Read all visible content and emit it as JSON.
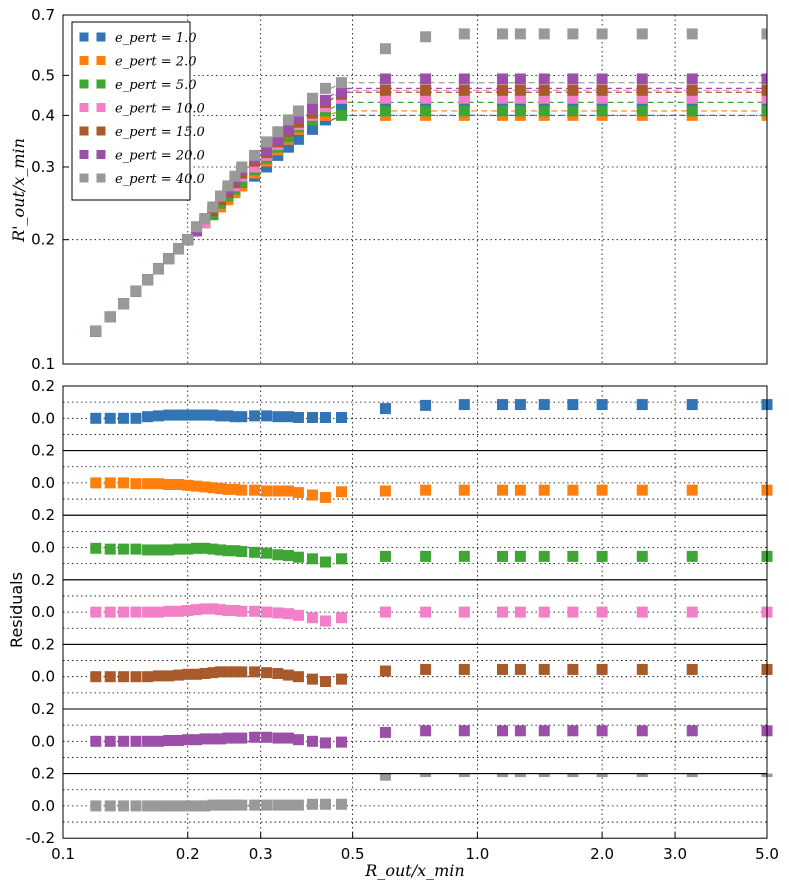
{
  "chart_data": {
    "type": "scatter",
    "xlabel": "R_out/x_min",
    "ylabel": "R'_out/x_min",
    "residuals_label": "Residuals",
    "x_scale": "log",
    "xlim": [
      0.1,
      5.0
    ],
    "x_ticks": [
      {
        "value": 0.1,
        "label": "0.1"
      },
      {
        "value": 0.2,
        "label": "0.2"
      },
      {
        "value": 0.3,
        "label": "0.3"
      },
      {
        "value": 0.5,
        "label": "0.5"
      },
      {
        "value": 1.0,
        "label": "1.0"
      },
      {
        "value": 2.0,
        "label": "2.0"
      },
      {
        "value": 3.0,
        "label": "3.0"
      },
      {
        "value": 5.0,
        "label": "5.0"
      }
    ],
    "main": {
      "y_scale": "log",
      "ylim": [
        0.1,
        0.7
      ],
      "y_ticks": [
        {
          "value": 0.1,
          "label": "0.1"
        },
        {
          "value": 0.2,
          "label": "0.2"
        },
        {
          "value": 0.3,
          "label": "0.3"
        },
        {
          "value": 0.4,
          "label": "0.4"
        },
        {
          "value": 0.5,
          "label": "0.5"
        },
        {
          "value": 0.7,
          "label": "0.7"
        }
      ]
    },
    "residuals": {
      "ylim": [
        -0.2,
        0.2
      ],
      "y_ticks": [
        {
          "value": 0.2,
          "label": "0.2"
        },
        {
          "value": 0.0,
          "label": "0.0"
        },
        {
          "value": -0.2,
          "label": "-0.2"
        }
      ],
      "grid_values": [
        0.1,
        0.0,
        -0.1
      ]
    },
    "x_points": [
      0.12,
      0.13,
      0.14,
      0.15,
      0.16,
      0.17,
      0.18,
      0.19,
      0.2,
      0.21,
      0.22,
      0.23,
      0.24,
      0.25,
      0.26,
      0.27,
      0.29,
      0.31,
      0.33,
      0.35,
      0.37,
      0.4,
      0.43,
      0.47,
      0.6,
      0.75,
      0.93,
      1.15,
      1.27,
      1.45,
      1.7,
      2.0,
      2.5,
      3.3,
      5.0
    ],
    "legend": {
      "position": "upper-left",
      "title_prefix": "e_pert = "
    },
    "series": [
      {
        "name": "1.0",
        "label": "e_pert = 1.0",
        "color": "#3274b4",
        "plateau": 0.4,
        "values": [
          0.12,
          0.13,
          0.14,
          0.15,
          0.16,
          0.17,
          0.18,
          0.19,
          0.2,
          0.21,
          0.22,
          0.23,
          0.24,
          0.25,
          0.26,
          0.27,
          0.285,
          0.3,
          0.32,
          0.335,
          0.35,
          0.37,
          0.39,
          0.42,
          0.43,
          0.43,
          0.43,
          0.43,
          0.43,
          0.43,
          0.43,
          0.43,
          0.43,
          0.43,
          0.43
        ],
        "residuals": [
          0.0,
          0.0,
          0.0,
          0.0,
          0.01,
          0.015,
          0.02,
          0.02,
          0.02,
          0.02,
          0.02,
          0.02,
          0.015,
          0.015,
          0.01,
          0.01,
          0.015,
          0.015,
          0.01,
          0.01,
          0.005,
          0.005,
          0.005,
          0.005,
          0.06,
          0.08,
          0.085,
          0.085,
          0.085,
          0.085,
          0.085,
          0.085,
          0.085,
          0.085,
          0.085
        ]
      },
      {
        "name": "2.0",
        "label": "e_pert = 2.0",
        "color": "#ff7f0e",
        "plateau": 0.41,
        "values": [
          0.12,
          0.13,
          0.14,
          0.15,
          0.16,
          0.17,
          0.18,
          0.19,
          0.2,
          0.21,
          0.22,
          0.23,
          0.24,
          0.25,
          0.26,
          0.27,
          0.29,
          0.31,
          0.33,
          0.35,
          0.37,
          0.39,
          0.4,
          0.44,
          0.4,
          0.4,
          0.4,
          0.4,
          0.4,
          0.4,
          0.4,
          0.4,
          0.4,
          0.4,
          0.4
        ],
        "residuals": [
          0.0,
          0.0,
          0.0,
          -0.005,
          -0.005,
          -0.005,
          -0.01,
          -0.01,
          -0.015,
          -0.02,
          -0.025,
          -0.03,
          -0.035,
          -0.04,
          -0.04,
          -0.045,
          -0.045,
          -0.05,
          -0.05,
          -0.05,
          -0.06,
          -0.075,
          -0.09,
          -0.055,
          -0.05,
          -0.045,
          -0.045,
          -0.045,
          -0.045,
          -0.045,
          -0.045,
          -0.045,
          -0.045,
          -0.045,
          -0.045
        ]
      },
      {
        "name": "5.0",
        "label": "e_pert = 5.0",
        "color": "#3fa535",
        "plateau": 0.43,
        "values": [
          0.12,
          0.13,
          0.14,
          0.15,
          0.16,
          0.17,
          0.18,
          0.19,
          0.2,
          0.21,
          0.22,
          0.23,
          0.245,
          0.255,
          0.265,
          0.275,
          0.295,
          0.315,
          0.335,
          0.355,
          0.375,
          0.39,
          0.41,
          0.4,
          0.41,
          0.41,
          0.41,
          0.41,
          0.41,
          0.41,
          0.41,
          0.41,
          0.41,
          0.41,
          0.41
        ],
        "residuals": [
          -0.005,
          -0.01,
          -0.01,
          -0.01,
          -0.015,
          -0.015,
          -0.015,
          -0.01,
          -0.01,
          -0.005,
          -0.005,
          -0.01,
          -0.015,
          -0.02,
          -0.02,
          -0.025,
          -0.03,
          -0.035,
          -0.045,
          -0.05,
          -0.06,
          -0.07,
          -0.09,
          -0.07,
          -0.055,
          -0.055,
          -0.055,
          -0.055,
          -0.055,
          -0.055,
          -0.055,
          -0.055,
          -0.055,
          -0.055,
          -0.055
        ]
      },
      {
        "name": "10.0",
        "label": "e_pert = 10.0",
        "color": "#f27fc8",
        "plateau": 0.46,
        "values": [
          0.12,
          0.13,
          0.14,
          0.15,
          0.16,
          0.17,
          0.18,
          0.19,
          0.2,
          0.21,
          0.22,
          0.235,
          0.25,
          0.26,
          0.27,
          0.285,
          0.3,
          0.32,
          0.34,
          0.365,
          0.38,
          0.4,
          0.42,
          0.44,
          0.44,
          0.44,
          0.44,
          0.44,
          0.44,
          0.44,
          0.44,
          0.44,
          0.44,
          0.44,
          0.44
        ],
        "residuals": [
          0.0,
          0.0,
          0.0,
          0.0,
          0.0,
          0.0,
          0.005,
          0.005,
          0.01,
          0.015,
          0.02,
          0.02,
          0.015,
          0.01,
          0.01,
          0.005,
          0.005,
          0.0,
          -0.005,
          -0.01,
          -0.02,
          -0.035,
          -0.055,
          -0.035,
          0.0,
          0.0,
          0.0,
          0.0,
          0.0,
          0.0,
          0.0,
          0.0,
          0.0,
          0.0,
          0.0
        ]
      },
      {
        "name": "15.0",
        "label": "e_pert = 15.0",
        "color": "#a85a2b",
        "plateau": 0.455,
        "values": [
          0.12,
          0.13,
          0.14,
          0.15,
          0.16,
          0.17,
          0.18,
          0.19,
          0.2,
          0.21,
          0.225,
          0.235,
          0.25,
          0.26,
          0.275,
          0.29,
          0.31,
          0.325,
          0.345,
          0.365,
          0.385,
          0.405,
          0.43,
          0.45,
          0.46,
          0.46,
          0.46,
          0.46,
          0.46,
          0.46,
          0.46,
          0.46,
          0.46,
          0.46,
          0.46
        ],
        "residuals": [
          0.0,
          0.0,
          0.0,
          0.0,
          0.0,
          0.005,
          0.005,
          0.01,
          0.015,
          0.015,
          0.02,
          0.025,
          0.03,
          0.03,
          0.03,
          0.03,
          0.03,
          0.025,
          0.02,
          0.01,
          0.0,
          -0.015,
          -0.03,
          -0.015,
          0.035,
          0.045,
          0.045,
          0.045,
          0.045,
          0.045,
          0.045,
          0.045,
          0.045,
          0.045,
          0.045
        ]
      },
      {
        "name": "20.0",
        "label": "e_pert = 20.0",
        "color": "#9b4fa8",
        "plateau": 0.465,
        "values": [
          0.12,
          0.13,
          0.14,
          0.15,
          0.16,
          0.17,
          0.18,
          0.19,
          0.2,
          0.21,
          0.225,
          0.24,
          0.255,
          0.265,
          0.28,
          0.295,
          0.315,
          0.33,
          0.35,
          0.37,
          0.395,
          0.415,
          0.435,
          0.455,
          0.49,
          0.49,
          0.49,
          0.49,
          0.49,
          0.49,
          0.49,
          0.49,
          0.49,
          0.49,
          0.49
        ],
        "residuals": [
          0.0,
          0.0,
          0.0,
          0.0,
          0.0,
          0.0,
          0.005,
          0.005,
          0.01,
          0.01,
          0.015,
          0.015,
          0.015,
          0.02,
          0.02,
          0.02,
          0.025,
          0.025,
          0.02,
          0.02,
          0.01,
          0.0,
          -0.01,
          -0.005,
          0.055,
          0.065,
          0.065,
          0.065,
          0.065,
          0.065,
          0.065,
          0.065,
          0.065,
          0.065,
          0.065
        ]
      },
      {
        "name": "40.0",
        "label": "e_pert = 40.0",
        "color": "#999999",
        "plateau": 0.48,
        "values": [
          0.12,
          0.13,
          0.14,
          0.15,
          0.16,
          0.17,
          0.18,
          0.19,
          0.2,
          0.215,
          0.225,
          0.24,
          0.255,
          0.27,
          0.285,
          0.3,
          0.32,
          0.345,
          0.365,
          0.39,
          0.41,
          0.44,
          0.465,
          0.48,
          0.58,
          0.62,
          0.63,
          0.63,
          0.63,
          0.63,
          0.63,
          0.63,
          0.63,
          0.63,
          0.63
        ],
        "residuals": [
          0.0,
          0.0,
          0.0,
          0.0,
          0.0,
          0.0,
          0.0,
          0.0,
          0.0,
          0.0,
          0.0,
          0.005,
          0.005,
          0.005,
          0.005,
          0.005,
          0.005,
          0.005,
          0.005,
          0.005,
          0.005,
          0.01,
          0.01,
          0.01,
          0.19,
          0.22,
          0.22,
          0.22,
          0.22,
          0.22,
          0.22,
          0.22,
          0.22,
          0.22,
          0.22
        ]
      }
    ]
  }
}
